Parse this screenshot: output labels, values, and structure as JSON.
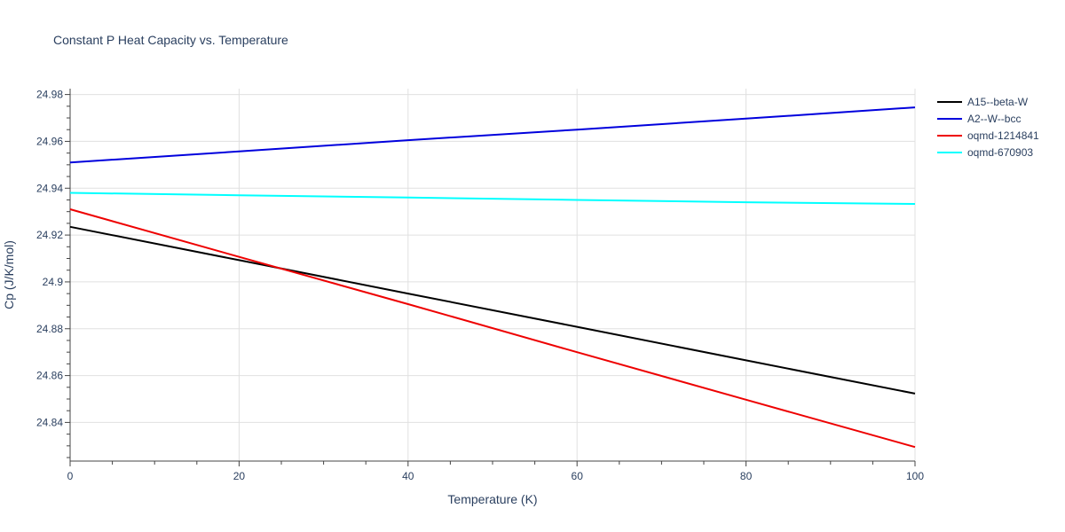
{
  "chart_data": {
    "type": "line",
    "title": "Constant P Heat Capacity vs. Temperature",
    "xlabel": "Temperature (K)",
    "ylabel": "Cp (J/K/mol)",
    "xlim": [
      0,
      100
    ],
    "ylim": [
      24.8235,
      24.9825
    ],
    "x_ticks": [
      0,
      20,
      40,
      60,
      80,
      100
    ],
    "y_ticks": [
      24.84,
      24.86,
      24.88,
      24.9,
      24.92,
      24.94,
      24.96,
      24.98
    ],
    "x_tick_labels": [
      "0",
      "20",
      "40",
      "60",
      "80",
      "100"
    ],
    "y_tick_labels": [
      "24.84",
      "24.86",
      "24.88",
      "24.9",
      "24.92",
      "24.94",
      "24.96",
      "24.98"
    ],
    "grid": true,
    "legend_position": "top-right",
    "series": [
      {
        "name": "A15--beta-W",
        "color": "#000000",
        "x": [
          0,
          20,
          40,
          60,
          80,
          100
        ],
        "values": [
          24.9235,
          24.9093,
          24.895,
          24.8808,
          24.8665,
          24.8523
        ]
      },
      {
        "name": "A2--W--bcc",
        "color": "#0000dd",
        "x": [
          0,
          20,
          40,
          60,
          80,
          100
        ],
        "values": [
          24.951,
          24.9557,
          24.9605,
          24.965,
          24.9697,
          24.9745
        ]
      },
      {
        "name": "oqmd-1214841",
        "color": "#ee0000",
        "x": [
          0,
          20,
          40,
          60,
          80,
          100
        ],
        "values": [
          24.931,
          24.9107,
          24.8905,
          24.87,
          24.8497,
          24.8295
        ]
      },
      {
        "name": "oqmd-670903",
        "color": "#00ffff",
        "x": [
          0,
          20,
          40,
          60,
          80,
          100
        ],
        "values": [
          24.938,
          24.937,
          24.936,
          24.935,
          24.934,
          24.9333
        ]
      }
    ]
  }
}
